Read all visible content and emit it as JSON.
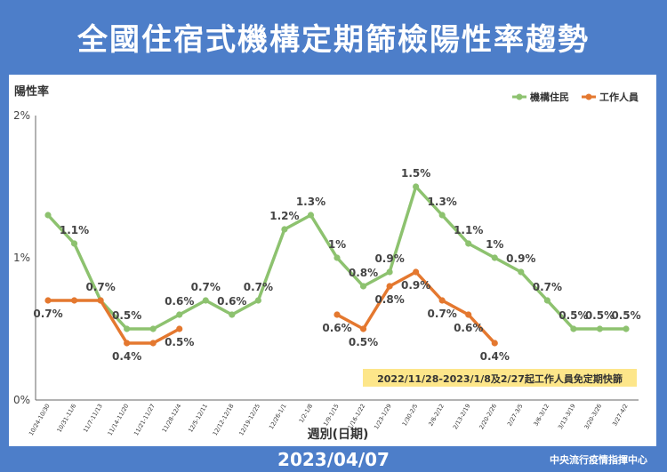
{
  "title": "全國住宿式機構定期篩檢陽性率趨勢",
  "footer": {
    "date": "2023/04/07",
    "org": "中央流行疫情指揮中心"
  },
  "colors": {
    "residents": "#8dc26f",
    "staff": "#e4782f",
    "background": "#4d7ec9",
    "note_bg": "#fde68a"
  },
  "chart_data": {
    "type": "line",
    "title": "全國住宿式機構定期篩檢陽性率趨勢",
    "ylabel": "陽性率",
    "xlabel": "週別(日期)",
    "ylim": [
      0,
      2
    ],
    "yticks": [
      "0%",
      "1%",
      "2%"
    ],
    "grid": false,
    "legend_position": "top-right",
    "categories": [
      "10/24-10/30",
      "10/31-11/6",
      "11/7-11/13",
      "11/14-11/20",
      "11/21-11/27",
      "11/28-12/4",
      "12/5-12/11",
      "12/12-12/18",
      "12/19-12/25",
      "12/26-1/1",
      "1/2-1/8",
      "1/9-1/15",
      "1/16-1/22",
      "1/23-1/29",
      "1/30-2/5",
      "2/6-2/12",
      "2/13-2/19",
      "2/20-2/26",
      "2/27-3/5",
      "3/6-3/12",
      "3/13-3/19",
      "3/20-3/26",
      "3/27-4/2"
    ],
    "series": [
      {
        "name": "機構住民",
        "color": "#8dc26f",
        "values": [
          1.3,
          1.1,
          0.7,
          0.5,
          0.5,
          0.6,
          0.7,
          0.6,
          0.7,
          1.2,
          1.3,
          1.0,
          0.8,
          0.9,
          1.5,
          1.3,
          1.1,
          1.0,
          0.9,
          0.7,
          0.5,
          0.5,
          0.5
        ],
        "labels": [
          "",
          "1.1%",
          "0.7%",
          "0.5%",
          "",
          "0.6%",
          "0.7%",
          "0.6%",
          "0.7%",
          "1.2%",
          "1.3%",
          "1%",
          "0.8%",
          "0.9%",
          "1.5%",
          "1.3%",
          "1.1%",
          "1%",
          "0.9%",
          "0.7%",
          "0.5%",
          "0.5%",
          "0.5%"
        ]
      },
      {
        "name": "工作人員",
        "color": "#e4782f",
        "values": [
          0.7,
          0.7,
          0.7,
          0.4,
          0.4,
          0.5,
          null,
          null,
          null,
          null,
          null,
          0.6,
          0.5,
          0.8,
          0.9,
          0.7,
          0.6,
          0.4,
          null,
          null,
          null,
          null,
          null
        ],
        "labels": [
          "0.7%",
          "",
          "",
          "0.4%",
          "",
          "0.5%",
          "",
          "",
          "",
          "",
          "",
          "0.6%",
          "0.5%",
          "0.8%",
          "0.9%",
          "0.7%",
          "0.6%",
          "0.4%",
          "",
          "",
          "",
          "",
          ""
        ]
      }
    ],
    "annotation": "2022/11/28-2023/1/8及2/27起工作人員免定期快篩"
  }
}
